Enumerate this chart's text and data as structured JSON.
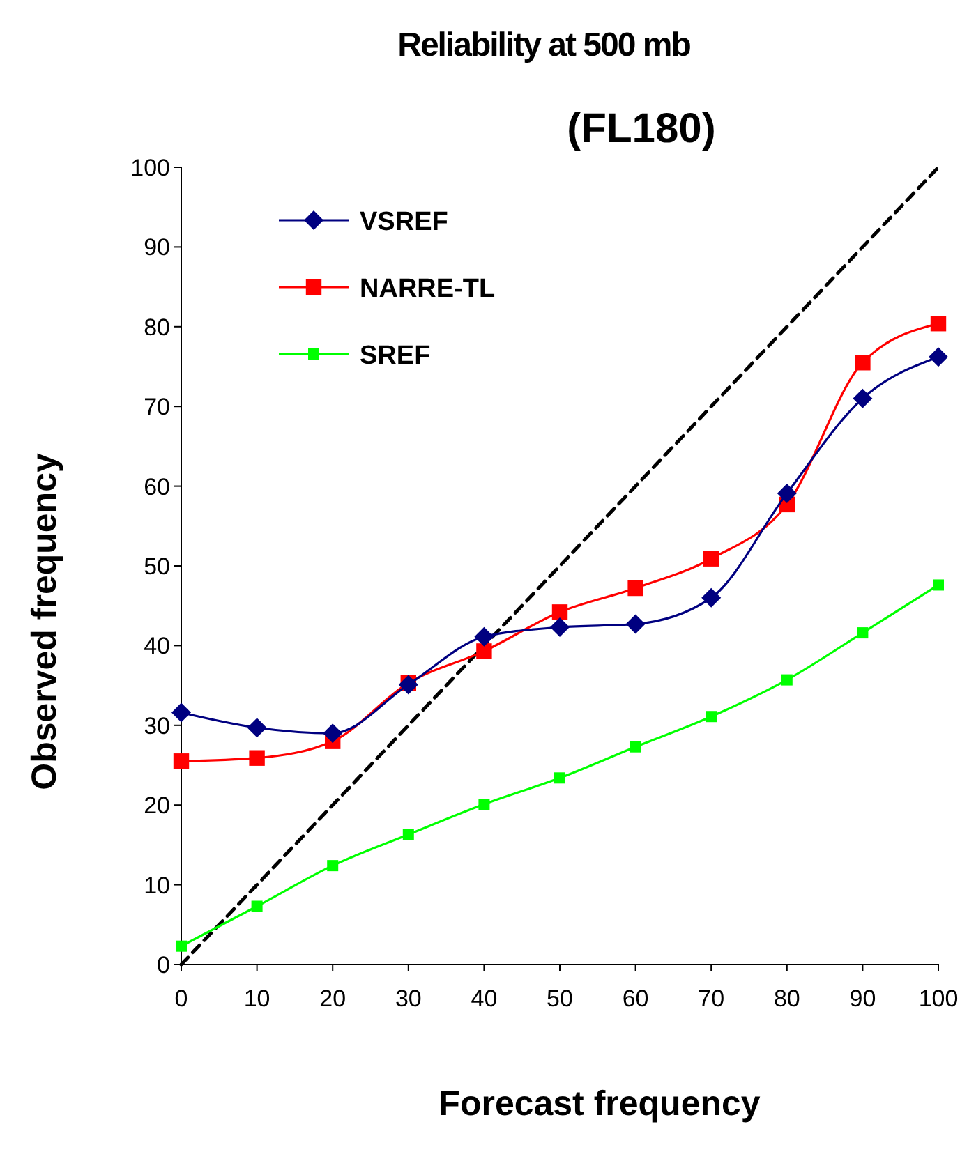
{
  "chart_data": {
    "type": "line",
    "title": "Reliability at 500 mb",
    "subtitle": "(FL180)",
    "xlabel": "Forecast frequency",
    "ylabel": "Observed frequency",
    "x": [
      0,
      10,
      20,
      30,
      40,
      50,
      60,
      70,
      80,
      90,
      100
    ],
    "xlim": [
      0,
      100
    ],
    "xticks": [
      0,
      10,
      20,
      30,
      40,
      50,
      60,
      70,
      80,
      90,
      100
    ],
    "ylim": [
      0,
      100
    ],
    "yticks": [
      0,
      10,
      20,
      30,
      40,
      50,
      60,
      70,
      80,
      90,
      100
    ],
    "grid": false,
    "legend": "top left",
    "series": [
      {
        "name": "VSREF",
        "color": "#000080",
        "marker": "diamond",
        "values": [
          31.6,
          29.7,
          29.0,
          35.1,
          41.1,
          42.3,
          42.7,
          46.0,
          59.1,
          71.0,
          76.2
        ]
      },
      {
        "name": "NARRE-TL",
        "color": "#ff0000",
        "marker": "square",
        "values": [
          25.5,
          25.9,
          28.0,
          35.3,
          39.3,
          44.2,
          47.2,
          50.9,
          57.7,
          75.5,
          80.4
        ]
      },
      {
        "name": "SREF",
        "color": "#00ff00",
        "marker": "square",
        "values": [
          2.3,
          7.3,
          12.4,
          16.3,
          20.1,
          23.4,
          27.3,
          31.1,
          35.7,
          41.6,
          47.6
        ]
      },
      {
        "color": "#000000",
        "marker": "none",
        "line_style": "dashed",
        "x": [
          0,
          100
        ],
        "values": [
          0,
          100
        ]
      }
    ]
  }
}
